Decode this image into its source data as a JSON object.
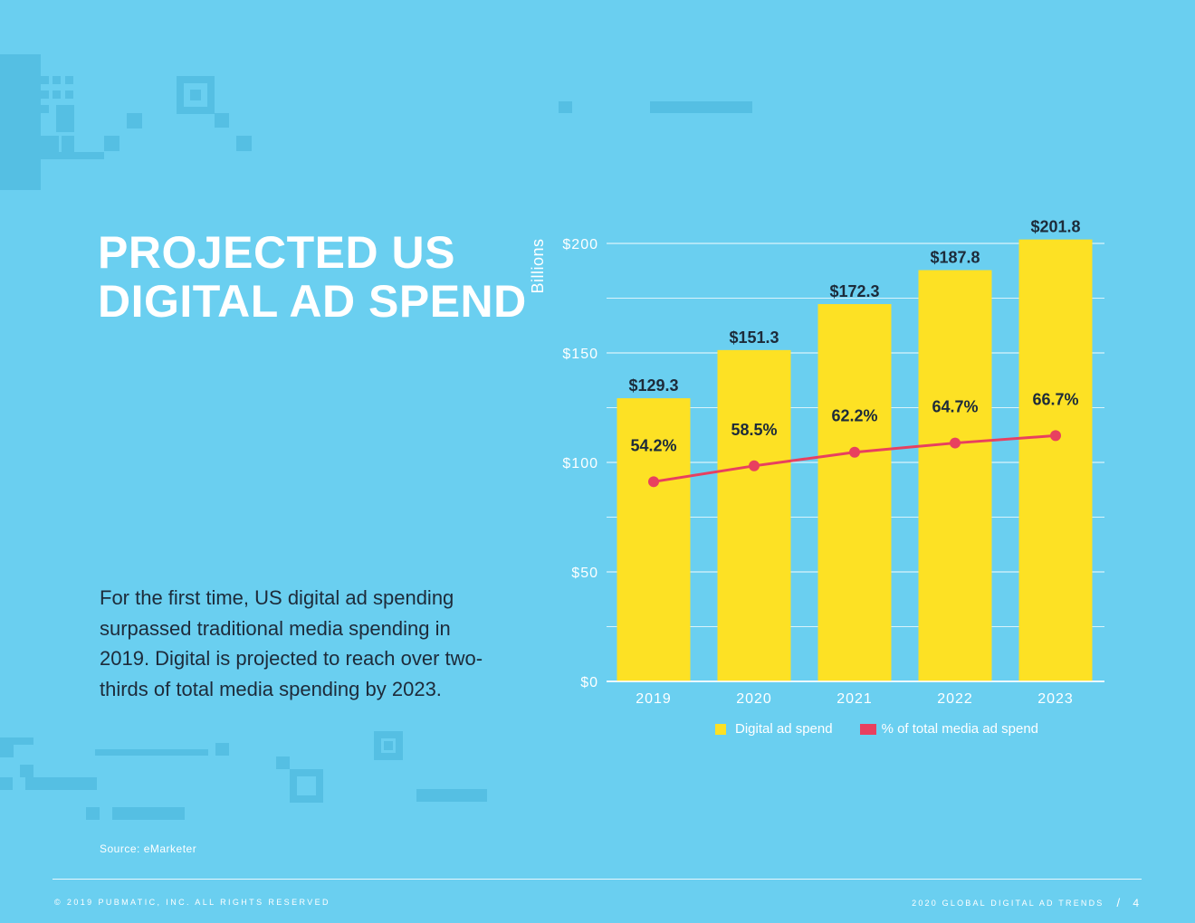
{
  "title": {
    "line1": "PROJECTED US",
    "line2": "DIGITAL AD SPEND"
  },
  "body_text": "For the first time, US digital ad spending surpassed traditional media spending in 2019. Digital is projected to reach over two-thirds of total media spending by 2023.",
  "source": "Source: eMarketer",
  "footer": {
    "copyright": "© 2019 PUBMATIC, INC. ALL RIGHTS RESERVED",
    "report_title": "2020 GLOBAL DIGITAL AD TRENDS",
    "separator": "/",
    "page_number": "4"
  },
  "colors": {
    "background": "#6acff0",
    "bar": "#fde124",
    "line": "#e8405f",
    "text_dark": "#1d2b3a",
    "grid": "#ffffff"
  },
  "chart_data": {
    "type": "bar",
    "categories": [
      "2019",
      "2020",
      "2021",
      "2022",
      "2023"
    ],
    "series": [
      {
        "name": "Digital ad spend",
        "kind": "bar",
        "values": [
          129.3,
          151.3,
          172.3,
          187.8,
          201.8
        ],
        "labels": [
          "$129.3",
          "$151.3",
          "$172.3",
          "$187.8",
          "$201.8"
        ]
      },
      {
        "name": "% of total media ad spend",
        "kind": "line",
        "values": [
          54.2,
          58.5,
          62.2,
          64.7,
          66.7
        ],
        "labels": [
          "54.2%",
          "58.5%",
          "62.2%",
          "64.7%",
          "66.7%"
        ]
      }
    ],
    "ylabel": "Billions",
    "ylim": [
      0,
      200
    ],
    "yticks": [
      0,
      50,
      100,
      150,
      200
    ],
    "ytick_labels": [
      "$0",
      "$50",
      "$100",
      "$150",
      "$200"
    ],
    "grid": true,
    "legend": "bottom"
  }
}
